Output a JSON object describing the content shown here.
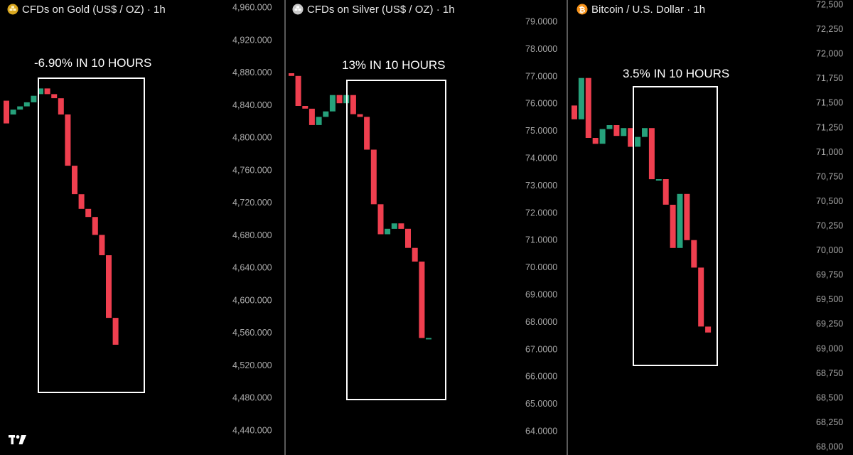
{
  "colors": {
    "background": "#000000",
    "up": "#26a17b",
    "down": "#ef3f4f",
    "box": "#ffffff",
    "tick": "#a9a9a9",
    "divider": "#5a5a5a"
  },
  "logo": {
    "icon": "tradingview-logo-icon"
  },
  "chart_data": [
    {
      "type": "candlestick",
      "title": "CFDs on Gold (US$ / OZ) · 1h",
      "icon": "gold-bars-icon",
      "icon_color": "#d9a71f",
      "annotation": "-6.90% IN 10 HOURS",
      "yticks": [
        "4,960.000",
        "4,920.000",
        "4,880.000",
        "4,840.000",
        "4,800.000",
        "4,760.000",
        "4,720.000",
        "4,680.000",
        "4,640.000",
        "4,600.000",
        "4,560.000",
        "4,520.000",
        "4,480.000",
        "4,440.000"
      ],
      "ylim": [
        4428,
        4972
      ],
      "candles": [
        {
          "o": 4845,
          "c": 4817
        },
        {
          "o": 4828,
          "c": 4834
        },
        {
          "o": 4834,
          "c": 4838
        },
        {
          "o": 4838,
          "c": 4843
        },
        {
          "o": 4843,
          "c": 4851
        },
        {
          "o": 4853,
          "c": 4860
        },
        {
          "o": 4860,
          "c": 4853
        },
        {
          "o": 4853,
          "c": 4848
        },
        {
          "o": 4848,
          "c": 4828
        },
        {
          "o": 4828,
          "c": 4765
        },
        {
          "o": 4765,
          "c": 4730
        },
        {
          "o": 4730,
          "c": 4712
        },
        {
          "o": 4712,
          "c": 4702
        },
        {
          "o": 4702,
          "c": 4680
        },
        {
          "o": 4680,
          "c": 4655
        },
        {
          "o": 4655,
          "c": 4578
        },
        {
          "o": 4578,
          "c": 4545
        }
      ]
    },
    {
      "type": "candlestick",
      "title": "CFDs on Silver (US$ / OZ) · 1h",
      "icon": "silver-bars-icon",
      "icon_color": "#c9c9c9",
      "annotation": "13% IN 10 HOURS",
      "yticks": [
        "79.0000",
        "78.0000",
        "77.0000",
        "76.0000",
        "75.0000",
        "74.0000",
        "73.0000",
        "72.0000",
        "71.0000",
        "70.0000",
        "69.0000",
        "68.0000",
        "67.0000",
        "66.0000",
        "65.0000",
        "64.0000"
      ],
      "ylim": [
        63.65,
        79.35
      ],
      "candles": [
        {
          "o": 77.1,
          "c": 77.0
        },
        {
          "o": 77.0,
          "c": 75.9
        },
        {
          "o": 75.9,
          "c": 75.8
        },
        {
          "o": 75.8,
          "c": 75.2
        },
        {
          "o": 75.2,
          "c": 75.5
        },
        {
          "o": 75.5,
          "c": 75.7
        },
        {
          "o": 75.7,
          "c": 76.3
        },
        {
          "o": 76.3,
          "c": 76.0
        },
        {
          "o": 76.0,
          "c": 76.3
        },
        {
          "o": 76.3,
          "c": 75.6
        },
        {
          "o": 75.6,
          "c": 75.5
        },
        {
          "o": 75.5,
          "c": 74.3
        },
        {
          "o": 74.3,
          "c": 72.3
        },
        {
          "o": 72.3,
          "c": 71.2
        },
        {
          "o": 71.2,
          "c": 71.4
        },
        {
          "o": 71.4,
          "c": 71.6
        },
        {
          "o": 71.6,
          "c": 71.4
        },
        {
          "o": 71.4,
          "c": 70.7
        },
        {
          "o": 70.7,
          "c": 70.2
        },
        {
          "o": 70.2,
          "c": 67.4
        },
        {
          "o": 67.4,
          "c": 67.4
        }
      ]
    },
    {
      "type": "candlestick",
      "title": "Bitcoin / U.S. Dollar · 1h",
      "icon": "bitcoin-icon",
      "icon_color": "#f7931a",
      "annotation": "3.5% IN 10 HOURS",
      "yticks": [
        "72,500",
        "72,250",
        "72,000",
        "71,750",
        "71,500",
        "71,250",
        "71,000",
        "70,750",
        "70,500",
        "70,250",
        "70,000",
        "69,750",
        "69,500",
        "69,250",
        "69,000",
        "68,750",
        "68,500",
        "68,250",
        "68,000"
      ],
      "ylim": [
        67985,
        72560
      ],
      "candles": [
        {
          "o": 71470,
          "c": 71330
        },
        {
          "o": 71330,
          "c": 71750
        },
        {
          "o": 71750,
          "c": 71140
        },
        {
          "o": 71140,
          "c": 71080
        },
        {
          "o": 71080,
          "c": 71230
        },
        {
          "o": 71230,
          "c": 71270
        },
        {
          "o": 71270,
          "c": 71160
        },
        {
          "o": 71160,
          "c": 71240
        },
        {
          "o": 71240,
          "c": 71050
        },
        {
          "o": 71050,
          "c": 71150
        },
        {
          "o": 71150,
          "c": 71240
        },
        {
          "o": 71240,
          "c": 70720
        },
        {
          "o": 70720,
          "c": 70720
        },
        {
          "o": 70720,
          "c": 70460
        },
        {
          "o": 70460,
          "c": 70020
        },
        {
          "o": 70020,
          "c": 70570
        },
        {
          "o": 70570,
          "c": 70100
        },
        {
          "o": 70100,
          "c": 69820
        },
        {
          "o": 69820,
          "c": 69220
        },
        {
          "o": 69220,
          "c": 69160
        }
      ]
    }
  ]
}
